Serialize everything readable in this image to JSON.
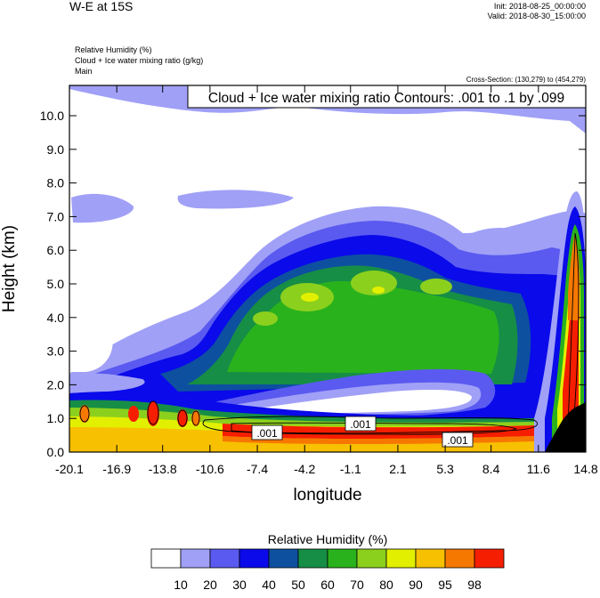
{
  "header": {
    "title": "W-E at 15S",
    "init": "Init: 2018-08-25_00:00:00",
    "valid": "Valid: 2018-08-30_15:00:00",
    "fields": [
      "Relative Humidity   (%)",
      "Cloud + Ice water mixing ratio   (g/kg)",
      "Main"
    ],
    "cross_section": "Cross-Section: (130,279) to (454,279)"
  },
  "chart_data": {
    "type": "heatmap",
    "contour_title": "Cloud + Ice water mixing ratio Contours: .001 to .1 by .099",
    "xlabel": "longitude",
    "ylabel": "Height (km)",
    "xlim": [
      -20.1,
      14.8
    ],
    "ylim": [
      0.0,
      10.9
    ],
    "x_ticks": [
      "-20.1",
      "-16.9",
      "-13.8",
      "-10.6",
      "-7.4",
      "-4.2",
      "-1.1",
      "2.1",
      "5.3",
      "8.4",
      "11.6",
      "14.8"
    ],
    "y_ticks": [
      "0.0",
      "1.0",
      "2.0",
      "3.0",
      "4.0",
      "5.0",
      "6.0",
      "7.0",
      "8.0",
      "9.0",
      "10.0"
    ],
    "contour_labels": [
      ".001",
      ".001",
      ".001"
    ],
    "colorbar": {
      "title": "Relative Humidity  (%)",
      "levels": [
        "10",
        "20",
        "30",
        "40",
        "50",
        "60",
        "70",
        "80",
        "90",
        "95",
        "98"
      ],
      "colors": [
        "#ffffff",
        "#a0a0f7",
        "#5a5af0",
        "#0a0aea",
        "#0e50a0",
        "#168e46",
        "#2ab21c",
        "#8cd01e",
        "#e2f000",
        "#f7c000",
        "#f77800",
        "#f61e00"
      ]
    },
    "terrain_color": "#000000",
    "grid": false
  }
}
